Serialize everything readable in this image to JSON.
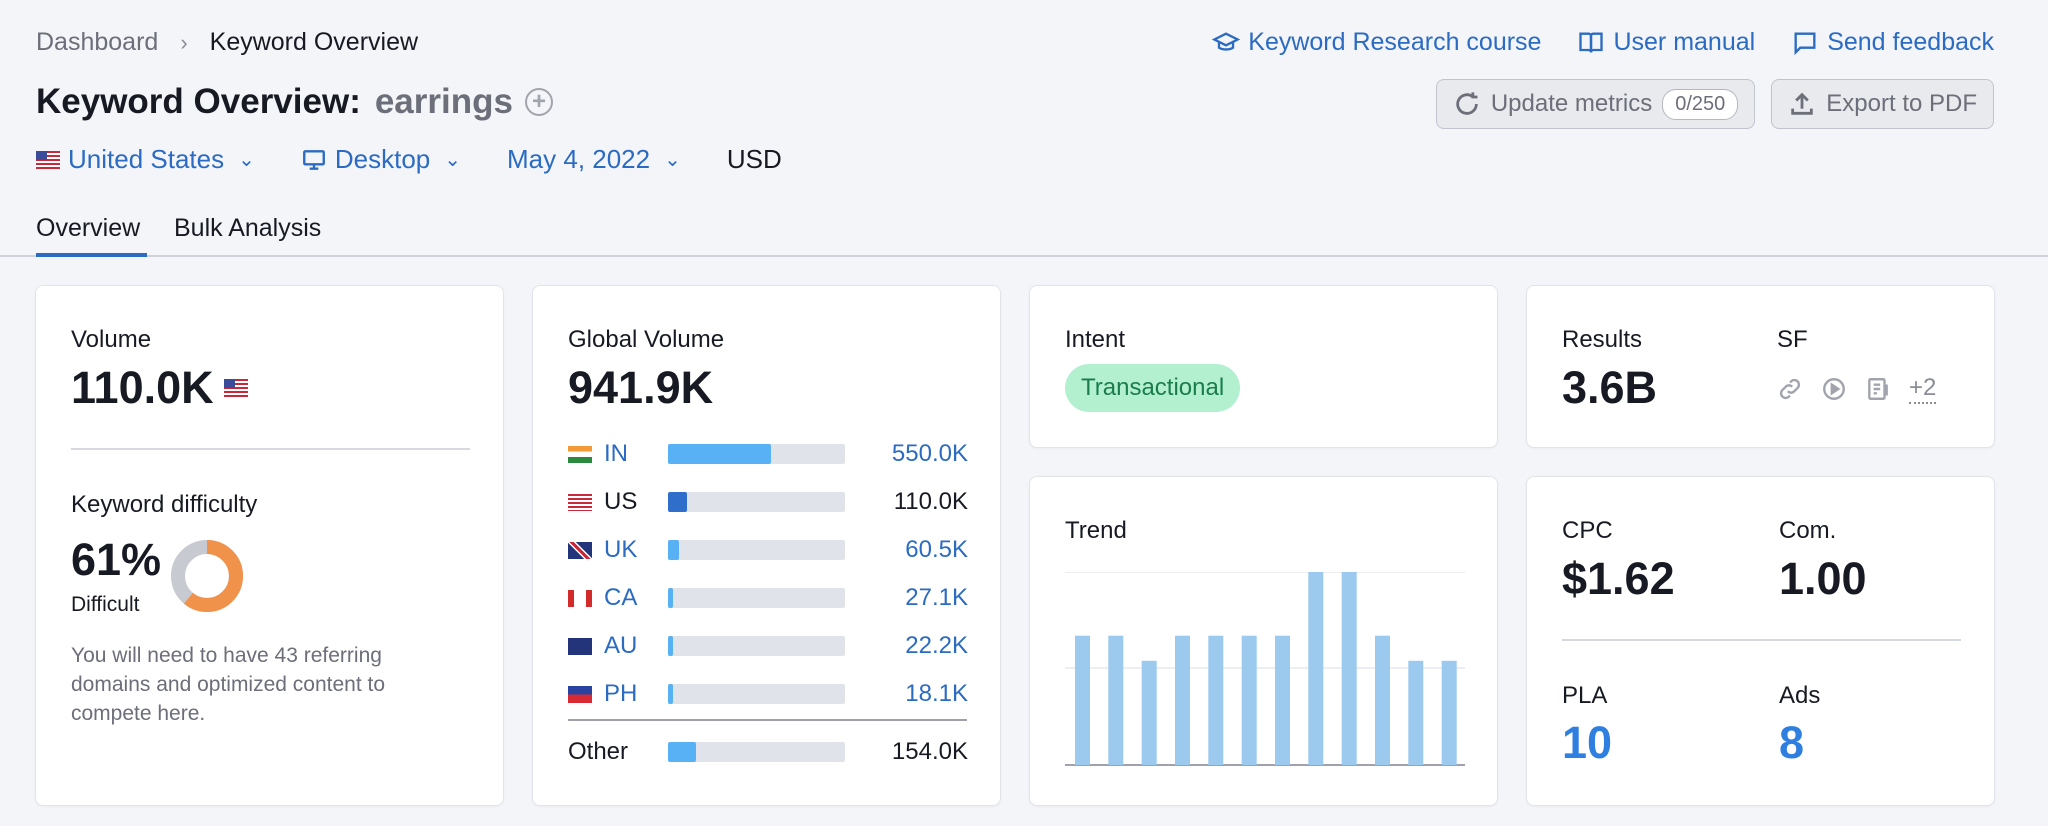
{
  "breadcrumb": {
    "parent": "Dashboard",
    "current": "Keyword Overview",
    "separator": "›"
  },
  "top_links": [
    {
      "label": "Keyword Research course",
      "icon": "graduation-cap-icon"
    },
    {
      "label": "User manual",
      "icon": "book-icon"
    },
    {
      "label": "Send feedback",
      "icon": "speech-bubble-icon"
    }
  ],
  "title": {
    "prefix": "Keyword Overview:",
    "keyword": "earrings"
  },
  "actions": {
    "update_label": "Update metrics",
    "update_counter": "0/250",
    "export_label": "Export to PDF"
  },
  "filters": {
    "country": "United States",
    "device": "Desktop",
    "date": "May 4, 2022",
    "currency": "USD"
  },
  "tabs": [
    "Overview",
    "Bulk Analysis"
  ],
  "volume": {
    "label": "Volume",
    "value": "110.0K"
  },
  "keyword_difficulty": {
    "label": "Keyword difficulty",
    "value": "61%",
    "level": "Difficult",
    "percent": 61,
    "description": "You will need to have 43 referring domains and optimized content to compete here."
  },
  "global_volume": {
    "label": "Global Volume",
    "value": "941.9K",
    "rows": [
      {
        "code": "IN",
        "value": "550.0K",
        "share": 0.58,
        "linked": true
      },
      {
        "code": "US",
        "value": "110.0K",
        "share": 0.11,
        "linked": false
      },
      {
        "code": "UK",
        "value": "60.5K",
        "share": 0.06,
        "linked": true
      },
      {
        "code": "CA",
        "value": "27.1K",
        "share": 0.03,
        "linked": true
      },
      {
        "code": "AU",
        "value": "22.2K",
        "share": 0.03,
        "linked": true
      },
      {
        "code": "PH",
        "value": "18.1K",
        "share": 0.03,
        "linked": true
      }
    ],
    "other": {
      "label": "Other",
      "value": "154.0K",
      "share": 0.16
    }
  },
  "intent": {
    "label": "Intent",
    "value": "Transactional"
  },
  "results": {
    "label": "Results",
    "value": "3.6B",
    "sf_label": "SF",
    "sf_more": "+2"
  },
  "trend": {
    "label": "Trend",
    "chart_data": {
      "type": "bar",
      "values": [
        0.67,
        0.67,
        0.54,
        0.67,
        0.67,
        0.67,
        0.67,
        1.0,
        1.0,
        0.67,
        0.54,
        0.54
      ]
    }
  },
  "cpc": {
    "label": "CPC",
    "value": "$1.62"
  },
  "com": {
    "label": "Com.",
    "value": "1.00"
  },
  "pla": {
    "label": "PLA",
    "value": "10"
  },
  "ads": {
    "label": "Ads",
    "value": "8"
  },
  "colors": {
    "link": "#2b6bc2",
    "bar_blue": "#58b0f5",
    "bar_dark": "#2f6fcb",
    "kd_orange": "#f0924a",
    "kd_grey": "#c8cad1",
    "trend_bar": "#9ccaee"
  }
}
